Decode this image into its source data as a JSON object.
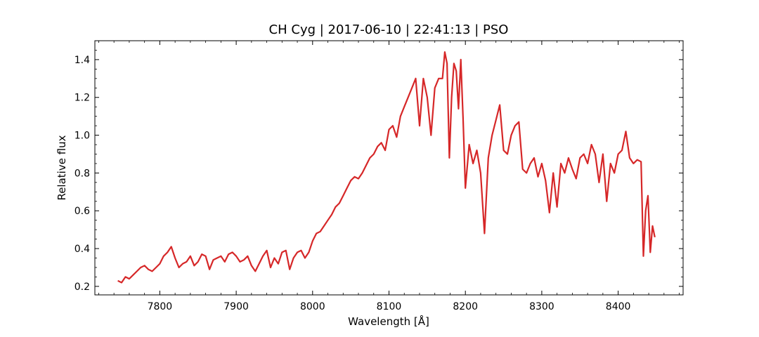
{
  "chart_data": {
    "type": "line",
    "title": "CH Cyg | 2017-06-10 | 22:41:13 | PSO",
    "xlabel": "Wavelength [Å]",
    "ylabel": "Relative flux",
    "xlim": [
      7715,
      8485
    ],
    "ylim": [
      0.155,
      1.5
    ],
    "xticks": [
      7800,
      7900,
      8000,
      8100,
      8200,
      8300,
      8400
    ],
    "yticks": [
      0.2,
      0.4,
      0.6,
      0.8,
      1.0,
      1.2,
      1.4
    ],
    "ytick_labels": [
      "0.2",
      "0.4",
      "0.6",
      "0.8",
      "1.0",
      "1.2",
      "1.4"
    ],
    "grid": false,
    "series": [
      {
        "color": "#d62728",
        "x": [
          7745,
          7750,
          7755,
          7760,
          7765,
          7770,
          7775,
          7780,
          7785,
          7790,
          7795,
          7800,
          7805,
          7810,
          7815,
          7820,
          7825,
          7830,
          7835,
          7840,
          7845,
          7850,
          7855,
          7860,
          7865,
          7870,
          7875,
          7880,
          7885,
          7890,
          7895,
          7900,
          7905,
          7910,
          7915,
          7920,
          7925,
          7930,
          7935,
          7940,
          7945,
          7950,
          7955,
          7960,
          7965,
          7970,
          7975,
          7980,
          7985,
          7990,
          7995,
          8000,
          8005,
          8010,
          8015,
          8020,
          8025,
          8030,
          8035,
          8040,
          8045,
          8050,
          8055,
          8060,
          8065,
          8070,
          8075,
          8080,
          8085,
          8090,
          8095,
          8100,
          8105,
          8110,
          8115,
          8120,
          8125,
          8130,
          8135,
          8140,
          8145,
          8150,
          8155,
          8160,
          8165,
          8170,
          8173,
          8176,
          8179,
          8182,
          8185,
          8188,
          8191,
          8194,
          8197,
          8200,
          8205,
          8210,
          8215,
          8220,
          8225,
          8230,
          8235,
          8240,
          8245,
          8250,
          8255,
          8260,
          8265,
          8270,
          8275,
          8280,
          8285,
          8290,
          8295,
          8300,
          8305,
          8310,
          8315,
          8320,
          8325,
          8330,
          8335,
          8340,
          8345,
          8350,
          8355,
          8360,
          8365,
          8370,
          8375,
          8380,
          8385,
          8390,
          8395,
          8400,
          8405,
          8410,
          8415,
          8420,
          8425,
          8430,
          8433,
          8436,
          8439,
          8442,
          8445,
          8448
        ],
        "y": [
          0.23,
          0.22,
          0.25,
          0.24,
          0.26,
          0.28,
          0.3,
          0.31,
          0.29,
          0.28,
          0.3,
          0.32,
          0.36,
          0.38,
          0.41,
          0.35,
          0.3,
          0.32,
          0.33,
          0.36,
          0.31,
          0.33,
          0.37,
          0.36,
          0.29,
          0.34,
          0.35,
          0.36,
          0.33,
          0.37,
          0.38,
          0.36,
          0.33,
          0.34,
          0.36,
          0.31,
          0.28,
          0.32,
          0.36,
          0.39,
          0.3,
          0.35,
          0.32,
          0.38,
          0.39,
          0.29,
          0.35,
          0.38,
          0.39,
          0.35,
          0.38,
          0.44,
          0.48,
          0.49,
          0.52,
          0.55,
          0.58,
          0.62,
          0.64,
          0.68,
          0.72,
          0.76,
          0.78,
          0.77,
          0.8,
          0.84,
          0.88,
          0.9,
          0.94,
          0.96,
          0.92,
          1.03,
          1.05,
          0.99,
          1.1,
          1.15,
          1.2,
          1.25,
          1.3,
          1.05,
          1.3,
          1.2,
          1.0,
          1.25,
          1.3,
          1.3,
          1.44,
          1.38,
          0.88,
          1.2,
          1.38,
          1.34,
          1.14,
          1.4,
          1.09,
          0.72,
          0.95,
          0.85,
          0.92,
          0.8,
          0.48,
          0.88,
          1.0,
          1.08,
          1.16,
          0.92,
          0.9,
          1.0,
          1.05,
          1.07,
          0.82,
          0.8,
          0.85,
          0.88,
          0.78,
          0.85,
          0.76,
          0.59,
          0.8,
          0.62,
          0.85,
          0.8,
          0.88,
          0.82,
          0.77,
          0.88,
          0.9,
          0.85,
          0.95,
          0.9,
          0.75,
          0.9,
          0.65,
          0.85,
          0.8,
          0.9,
          0.92,
          1.02,
          0.88,
          0.85,
          0.87,
          0.86,
          0.36,
          0.6,
          0.68,
          0.38,
          0.52,
          0.46
        ]
      }
    ]
  }
}
